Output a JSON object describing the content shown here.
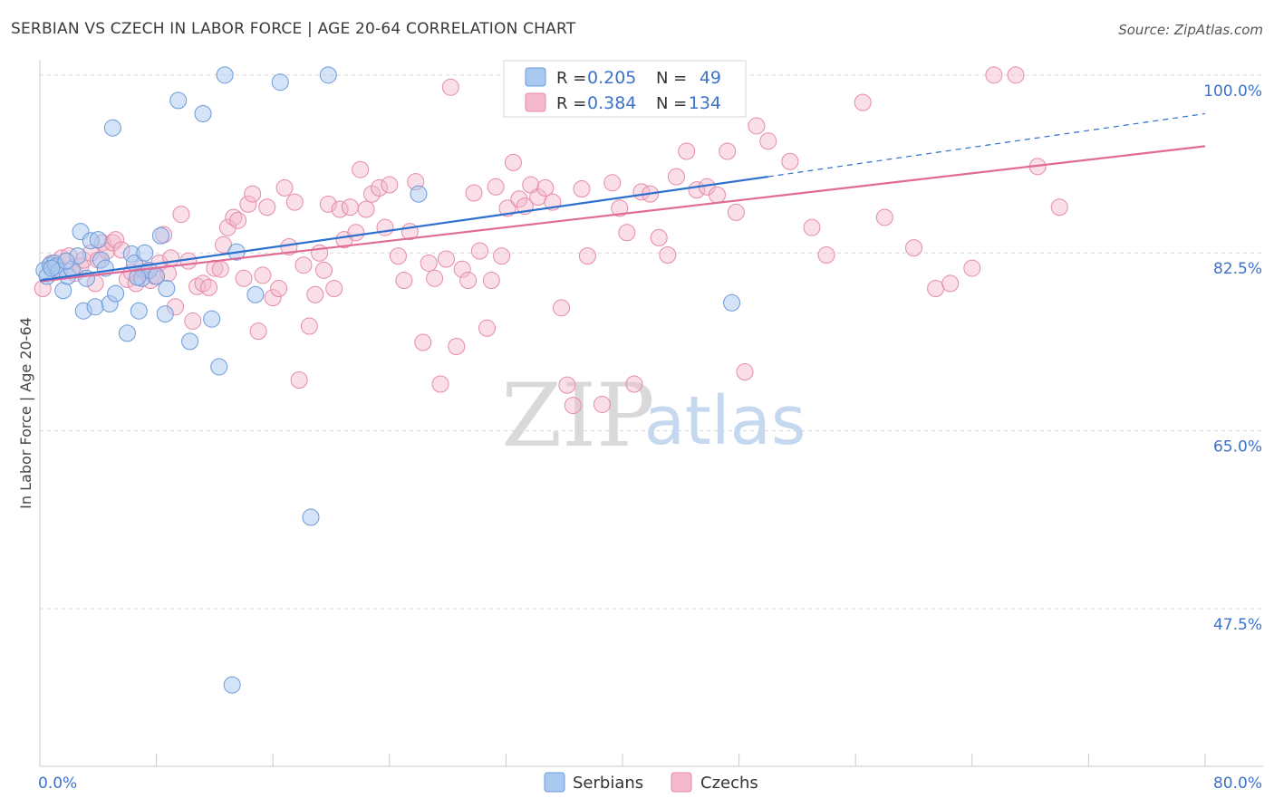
{
  "chart_data": {
    "type": "scatter",
    "title": "SERBIAN VS CZECH IN LABOR FORCE | AGE 20-64 CORRELATION CHART",
    "source": "Source: ZipAtlas.com",
    "xlabel": "",
    "ylabel": "In Labor Force | Age 20-64",
    "xlim": [
      0,
      80
    ],
    "ylim": [
      32.0,
      101.5
    ],
    "x_tick_labels": [
      {
        "value": 0,
        "label": "0.0%"
      },
      {
        "value": 80,
        "label": "80.0%"
      }
    ],
    "y_tick_labels": [
      {
        "value": 100.0,
        "label": "100.0%"
      },
      {
        "value": 82.5,
        "label": "82.5%"
      },
      {
        "value": 65.0,
        "label": "65.0%"
      },
      {
        "value": 47.5,
        "label": "47.5%"
      }
    ],
    "watermark": {
      "zip": "ZIP",
      "atlas": "atlas"
    },
    "legend": {
      "serbians": {
        "r_label": "R =",
        "r_value": "0.205",
        "n_label": "N =",
        "n_value": "49"
      },
      "czechs": {
        "r_label": "R =",
        "r_value": "0.384",
        "n_label": "N =",
        "n_value": "134"
      }
    },
    "colors": {
      "serbians_fill": "#a9c8f0",
      "serbians_stroke": "#6a9bd8",
      "serbians_line": "#2d6fce",
      "czechs_fill": "#f5b8cc",
      "czechs_stroke": "#e58aaa",
      "czechs_line": "#e06b96",
      "value_text": "#3d72c8",
      "grid": "#d8d8d8",
      "axis": "#c9c9c9"
    },
    "series": [
      {
        "name": "Serbians",
        "trend": {
          "x0": 0,
          "y0": 79.8,
          "x1": 50,
          "y1": 90.0,
          "dash_to_x": 80,
          "dash_to_y": 96.2
        },
        "points": [
          [
            0.3,
            80.8
          ],
          [
            0.5,
            80.2
          ],
          [
            0.7,
            81.3
          ],
          [
            1.0,
            81.5
          ],
          [
            1.1,
            81.2
          ],
          [
            1.3,
            80.7
          ],
          [
            1.6,
            78.8
          ],
          [
            1.9,
            80.2
          ],
          [
            2.2,
            80.9
          ],
          [
            2.6,
            82.2
          ],
          [
            2.8,
            84.6
          ],
          [
            3.0,
            76.8
          ],
          [
            3.2,
            80.0
          ],
          [
            3.5,
            83.7
          ],
          [
            3.8,
            77.2
          ],
          [
            4.2,
            81.8
          ],
          [
            4.5,
            81.0
          ],
          [
            4.8,
            77.5
          ],
          [
            5.0,
            94.8
          ],
          [
            5.2,
            78.5
          ],
          [
            6.0,
            74.6
          ],
          [
            6.3,
            82.4
          ],
          [
            6.5,
            81.5
          ],
          [
            6.8,
            76.8
          ],
          [
            7.0,
            80.0
          ],
          [
            7.2,
            82.5
          ],
          [
            7.5,
            80.8
          ],
          [
            8.0,
            80.2
          ],
          [
            8.3,
            84.2
          ],
          [
            8.6,
            76.5
          ],
          [
            8.7,
            79.0
          ],
          [
            9.5,
            97.5
          ],
          [
            10.3,
            73.8
          ],
          [
            11.2,
            96.2
          ],
          [
            11.8,
            76.0
          ],
          [
            12.3,
            71.3
          ],
          [
            12.7,
            100.0
          ],
          [
            13.2,
            40.0
          ],
          [
            13.5,
            82.6
          ],
          [
            14.8,
            78.4
          ],
          [
            16.5,
            99.3
          ],
          [
            18.6,
            56.5
          ],
          [
            19.8,
            100.0
          ],
          [
            26.0,
            88.3
          ],
          [
            47.5,
            77.6
          ],
          [
            0.8,
            81.0
          ],
          [
            1.8,
            81.7
          ],
          [
            4.0,
            83.8
          ],
          [
            6.7,
            80.1
          ]
        ]
      },
      {
        "name": "Czechs",
        "trend": {
          "x0": 0,
          "y0": 79.7,
          "x1": 80,
          "y1": 93.0
        },
        "points": [
          [
            0.2,
            79.0
          ],
          [
            0.8,
            81.5
          ],
          [
            1.2,
            81.0
          ],
          [
            1.5,
            82.0
          ],
          [
            2.0,
            82.2
          ],
          [
            2.4,
            80.5
          ],
          [
            2.8,
            81.2
          ],
          [
            3.0,
            81.8
          ],
          [
            3.5,
            82.5
          ],
          [
            3.8,
            79.5
          ],
          [
            4.0,
            81.8
          ],
          [
            4.3,
            83.5
          ],
          [
            4.6,
            82.7
          ],
          [
            5.0,
            83.5
          ],
          [
            5.2,
            83.8
          ],
          [
            5.6,
            82.8
          ],
          [
            6.0,
            79.9
          ],
          [
            6.3,
            80.6
          ],
          [
            6.6,
            79.5
          ],
          [
            7.0,
            81.0
          ],
          [
            7.3,
            80.6
          ],
          [
            7.6,
            79.8
          ],
          [
            7.9,
            80.2
          ],
          [
            8.2,
            81.5
          ],
          [
            8.5,
            84.3
          ],
          [
            8.8,
            80.5
          ],
          [
            9.0,
            82.0
          ],
          [
            9.3,
            77.2
          ],
          [
            9.7,
            86.3
          ],
          [
            10.2,
            81.7
          ],
          [
            10.5,
            75.8
          ],
          [
            10.8,
            79.2
          ],
          [
            11.2,
            79.5
          ],
          [
            11.6,
            79.1
          ],
          [
            12.0,
            81.0
          ],
          [
            12.4,
            80.9
          ],
          [
            12.6,
            83.3
          ],
          [
            12.9,
            85.0
          ],
          [
            13.3,
            86.0
          ],
          [
            13.6,
            85.7
          ],
          [
            14.0,
            80.0
          ],
          [
            14.3,
            87.3
          ],
          [
            14.6,
            88.3
          ],
          [
            15.0,
            74.8
          ],
          [
            15.3,
            80.3
          ],
          [
            15.6,
            87.0
          ],
          [
            16.0,
            78.1
          ],
          [
            16.4,
            79.0
          ],
          [
            16.8,
            88.9
          ],
          [
            17.1,
            83.1
          ],
          [
            17.5,
            87.5
          ],
          [
            17.8,
            70.0
          ],
          [
            18.1,
            81.3
          ],
          [
            18.5,
            75.3
          ],
          [
            18.9,
            78.4
          ],
          [
            19.2,
            82.5
          ],
          [
            19.5,
            80.8
          ],
          [
            19.8,
            87.3
          ],
          [
            20.2,
            79.0
          ],
          [
            20.6,
            86.8
          ],
          [
            20.9,
            83.8
          ],
          [
            21.3,
            87.0
          ],
          [
            21.7,
            84.5
          ],
          [
            22.0,
            90.7
          ],
          [
            22.4,
            86.8
          ],
          [
            22.8,
            88.3
          ],
          [
            23.3,
            88.9
          ],
          [
            23.7,
            85.0
          ],
          [
            24.0,
            89.2
          ],
          [
            24.6,
            82.2
          ],
          [
            25.0,
            79.8
          ],
          [
            25.4,
            84.6
          ],
          [
            25.8,
            89.5
          ],
          [
            26.3,
            73.7
          ],
          [
            26.7,
            81.5
          ],
          [
            27.1,
            80.0
          ],
          [
            27.5,
            69.6
          ],
          [
            27.9,
            81.9
          ],
          [
            28.2,
            98.8
          ],
          [
            28.6,
            73.3
          ],
          [
            29.0,
            80.9
          ],
          [
            29.4,
            79.8
          ],
          [
            29.8,
            88.4
          ],
          [
            30.2,
            82.7
          ],
          [
            30.7,
            75.1
          ],
          [
            31.0,
            79.8
          ],
          [
            31.3,
            89.0
          ],
          [
            31.7,
            82.2
          ],
          [
            32.1,
            86.9
          ],
          [
            32.5,
            91.4
          ],
          [
            32.9,
            87.8
          ],
          [
            33.3,
            87.1
          ],
          [
            33.7,
            89.2
          ],
          [
            34.2,
            88.0
          ],
          [
            34.7,
            88.9
          ],
          [
            35.2,
            87.5
          ],
          [
            35.8,
            77.1
          ],
          [
            36.2,
            69.5
          ],
          [
            36.6,
            67.5
          ],
          [
            37.2,
            88.8
          ],
          [
            37.6,
            82.2
          ],
          [
            38.0,
            100.0
          ],
          [
            38.6,
            67.6
          ],
          [
            39.3,
            89.4
          ],
          [
            39.8,
            86.9
          ],
          [
            40.3,
            84.5
          ],
          [
            40.8,
            69.6
          ],
          [
            41.3,
            88.5
          ],
          [
            41.9,
            88.3
          ],
          [
            42.5,
            84.0
          ],
          [
            43.1,
            82.3
          ],
          [
            43.7,
            90.0
          ],
          [
            44.4,
            92.5
          ],
          [
            45.1,
            88.7
          ],
          [
            45.8,
            89.0
          ],
          [
            46.5,
            88.2
          ],
          [
            47.2,
            92.5
          ],
          [
            47.8,
            86.5
          ],
          [
            48.4,
            70.8
          ],
          [
            49.2,
            95.0
          ],
          [
            50.0,
            93.5
          ],
          [
            51.5,
            91.5
          ],
          [
            53.0,
            85.0
          ],
          [
            54.0,
            82.3
          ],
          [
            56.5,
            97.3
          ],
          [
            58.0,
            86.0
          ],
          [
            60.0,
            83.0
          ],
          [
            61.5,
            79.0
          ],
          [
            62.5,
            79.5
          ],
          [
            64.0,
            81.0
          ],
          [
            65.5,
            100.0
          ],
          [
            67.0,
            100.0
          ],
          [
            68.5,
            91.0
          ],
          [
            70.0,
            87.0
          ]
        ]
      }
    ]
  }
}
